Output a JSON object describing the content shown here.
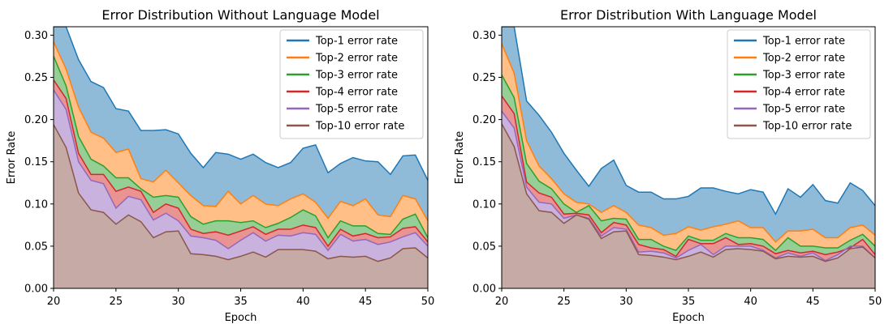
{
  "chart_data": [
    {
      "type": "area",
      "title": "Error Distribution Without Language Model",
      "xlabel": "Epoch",
      "ylabel": "Error Rate",
      "xlim": [
        20,
        50
      ],
      "ylim": [
        0,
        0.31
      ],
      "xticks": [
        20,
        25,
        30,
        35,
        40,
        45,
        50
      ],
      "yticks": [
        0.0,
        0.05,
        0.1,
        0.15,
        0.2,
        0.25,
        0.3
      ],
      "grid": false,
      "legend_position": "top-right",
      "x": [
        20,
        21,
        22,
        23,
        24,
        25,
        26,
        27,
        28,
        29,
        30,
        31,
        32,
        33,
        34,
        35,
        36,
        37,
        38,
        39,
        40,
        41,
        42,
        43,
        44,
        45,
        46,
        47,
        48,
        49,
        50
      ],
      "series": [
        {
          "name": "Top-1 error rate",
          "color": "#1f77b4",
          "values": [
            0.315,
            0.315,
            0.271,
            0.245,
            0.238,
            0.213,
            0.21,
            0.187,
            0.187,
            0.188,
            0.183,
            0.16,
            0.143,
            0.161,
            0.159,
            0.153,
            0.159,
            0.149,
            0.143,
            0.149,
            0.166,
            0.17,
            0.137,
            0.148,
            0.155,
            0.151,
            0.15,
            0.135,
            0.157,
            0.158,
            0.128
          ]
        },
        {
          "name": "Top-2 error rate",
          "color": "#ff7f0e",
          "values": [
            0.292,
            0.26,
            0.215,
            0.185,
            0.178,
            0.161,
            0.165,
            0.13,
            0.126,
            0.14,
            0.125,
            0.11,
            0.098,
            0.097,
            0.115,
            0.1,
            0.11,
            0.1,
            0.098,
            0.106,
            0.112,
            0.102,
            0.083,
            0.103,
            0.098,
            0.106,
            0.087,
            0.085,
            0.11,
            0.106,
            0.08
          ]
        },
        {
          "name": "Top-3 error rate",
          "color": "#2ca02c",
          "values": [
            0.275,
            0.24,
            0.18,
            0.153,
            0.145,
            0.131,
            0.131,
            0.118,
            0.108,
            0.11,
            0.108,
            0.085,
            0.076,
            0.08,
            0.08,
            0.078,
            0.08,
            0.072,
            0.077,
            0.084,
            0.093,
            0.086,
            0.06,
            0.08,
            0.074,
            0.074,
            0.065,
            0.064,
            0.082,
            0.088,
            0.06
          ]
        },
        {
          "name": "Top-4 error rate",
          "color": "#d62728",
          "values": [
            0.247,
            0.225,
            0.16,
            0.135,
            0.135,
            0.115,
            0.12,
            0.115,
            0.09,
            0.1,
            0.095,
            0.07,
            0.065,
            0.067,
            0.063,
            0.068,
            0.073,
            0.064,
            0.07,
            0.07,
            0.075,
            0.072,
            0.05,
            0.07,
            0.062,
            0.065,
            0.06,
            0.061,
            0.071,
            0.073,
            0.055
          ]
        },
        {
          "name": "Top-5 error rate",
          "color": "#9467bd",
          "values": [
            0.235,
            0.212,
            0.15,
            0.128,
            0.124,
            0.095,
            0.109,
            0.105,
            0.081,
            0.089,
            0.08,
            0.062,
            0.06,
            0.057,
            0.047,
            0.057,
            0.066,
            0.056,
            0.063,
            0.062,
            0.066,
            0.064,
            0.045,
            0.064,
            0.056,
            0.058,
            0.052,
            0.055,
            0.061,
            0.066,
            0.05
          ]
        },
        {
          "name": "Top-10 error rate",
          "color": "#8c564b",
          "values": [
            0.194,
            0.167,
            0.113,
            0.093,
            0.09,
            0.076,
            0.087,
            0.079,
            0.06,
            0.067,
            0.068,
            0.041,
            0.04,
            0.038,
            0.034,
            0.038,
            0.043,
            0.037,
            0.046,
            0.046,
            0.046,
            0.044,
            0.035,
            0.038,
            0.037,
            0.038,
            0.032,
            0.036,
            0.047,
            0.048,
            0.036
          ]
        }
      ]
    },
    {
      "type": "area",
      "title": "Error Distribution With Language Model",
      "xlabel": "Epoch",
      "ylabel": "Error Rate",
      "xlim": [
        20,
        50
      ],
      "ylim": [
        0,
        0.31
      ],
      "xticks": [
        20,
        25,
        30,
        35,
        40,
        45,
        50
      ],
      "yticks": [
        0.0,
        0.05,
        0.1,
        0.15,
        0.2,
        0.25,
        0.3
      ],
      "grid": false,
      "legend_position": "top-right",
      "x": [
        20,
        21,
        22,
        23,
        24,
        25,
        26,
        27,
        28,
        29,
        30,
        31,
        32,
        33,
        34,
        35,
        36,
        37,
        38,
        39,
        40,
        41,
        42,
        43,
        44,
        45,
        46,
        47,
        48,
        49,
        50
      ],
      "series": [
        {
          "name": "Top-1 error rate",
          "color": "#1f77b4",
          "values": [
            0.315,
            0.315,
            0.222,
            0.205,
            0.185,
            0.16,
            0.14,
            0.121,
            0.142,
            0.152,
            0.122,
            0.114,
            0.114,
            0.106,
            0.106,
            0.109,
            0.119,
            0.119,
            0.115,
            0.112,
            0.117,
            0.114,
            0.088,
            0.118,
            0.108,
            0.123,
            0.104,
            0.101,
            0.125,
            0.116,
            0.098
          ]
        },
        {
          "name": "Top-2 error rate",
          "color": "#ff7f0e",
          "values": [
            0.29,
            0.255,
            0.175,
            0.145,
            0.13,
            0.112,
            0.102,
            0.1,
            0.09,
            0.098,
            0.09,
            0.075,
            0.072,
            0.063,
            0.065,
            0.073,
            0.069,
            0.073,
            0.076,
            0.08,
            0.072,
            0.072,
            0.055,
            0.068,
            0.068,
            0.07,
            0.06,
            0.06,
            0.072,
            0.075,
            0.063
          ]
        },
        {
          "name": "Top-3 error rate",
          "color": "#2ca02c",
          "values": [
            0.253,
            0.226,
            0.148,
            0.127,
            0.118,
            0.1,
            0.09,
            0.098,
            0.08,
            0.083,
            0.082,
            0.058,
            0.058,
            0.05,
            0.045,
            0.062,
            0.057,
            0.057,
            0.065,
            0.06,
            0.06,
            0.058,
            0.045,
            0.06,
            0.05,
            0.05,
            0.048,
            0.048,
            0.057,
            0.064,
            0.05
          ]
        },
        {
          "name": "Top-4 error rate",
          "color": "#d62728",
          "values": [
            0.228,
            0.207,
            0.126,
            0.113,
            0.108,
            0.088,
            0.089,
            0.087,
            0.066,
            0.078,
            0.075,
            0.052,
            0.048,
            0.046,
            0.038,
            0.058,
            0.053,
            0.053,
            0.06,
            0.052,
            0.053,
            0.05,
            0.041,
            0.045,
            0.042,
            0.044,
            0.04,
            0.043,
            0.048,
            0.058,
            0.04
          ]
        },
        {
          "name": "Top-5 error rate",
          "color": "#9467bd",
          "values": [
            0.21,
            0.19,
            0.12,
            0.102,
            0.1,
            0.083,
            0.087,
            0.083,
            0.062,
            0.072,
            0.07,
            0.043,
            0.044,
            0.042,
            0.036,
            0.045,
            0.052,
            0.04,
            0.05,
            0.05,
            0.05,
            0.045,
            0.036,
            0.042,
            0.038,
            0.042,
            0.033,
            0.04,
            0.05,
            0.05,
            0.036
          ]
        },
        {
          "name": "Top-10 error rate",
          "color": "#8c564b",
          "values": [
            0.195,
            0.168,
            0.112,
            0.092,
            0.09,
            0.077,
            0.087,
            0.082,
            0.059,
            0.067,
            0.068,
            0.04,
            0.039,
            0.037,
            0.034,
            0.038,
            0.043,
            0.037,
            0.046,
            0.047,
            0.046,
            0.044,
            0.035,
            0.038,
            0.037,
            0.038,
            0.032,
            0.036,
            0.047,
            0.049,
            0.036
          ]
        }
      ]
    }
  ]
}
